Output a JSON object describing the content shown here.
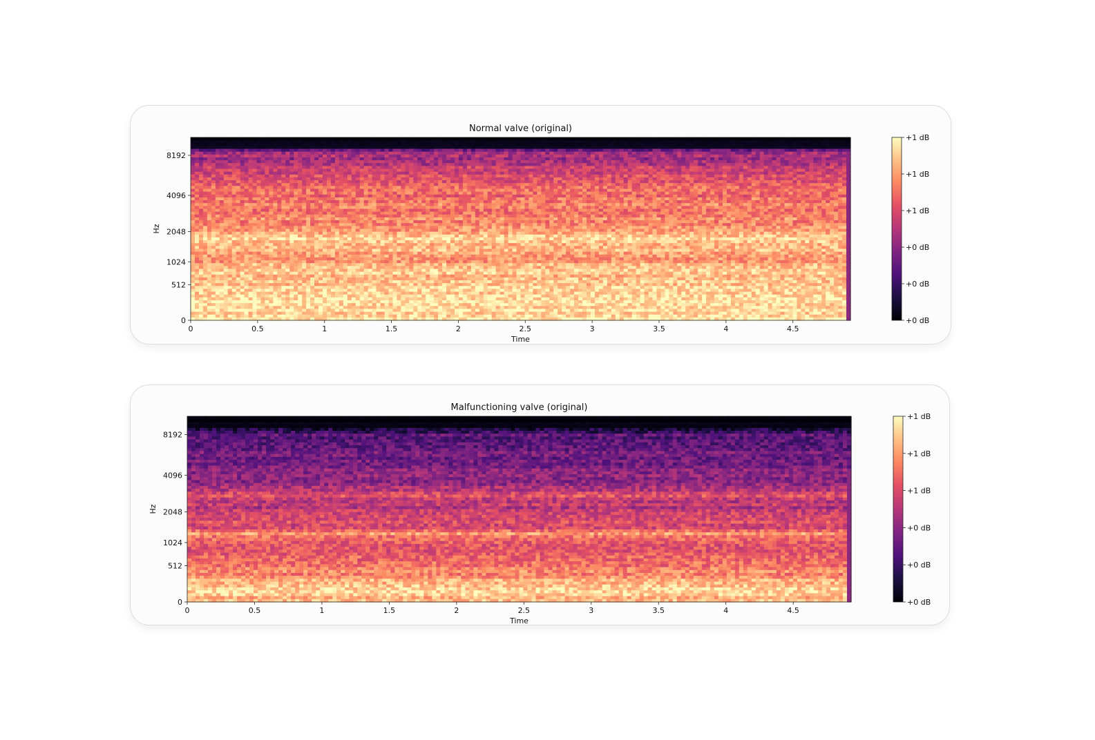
{
  "chart_data": [
    {
      "type": "heatmap",
      "title": "Normal valve (original)",
      "xlabel": "Time",
      "ylabel": "Hz",
      "xlim": [
        0,
        4.93
      ],
      "x_ticks": [
        0,
        0.5,
        1,
        1.5,
        2,
        2.5,
        3,
        3.5,
        4,
        4.5
      ],
      "x_tick_labels": [
        "0",
        "0.5",
        "1",
        "1.5",
        "2",
        "2.5",
        "3",
        "3.5",
        "4",
        "4.5"
      ],
      "y_ticks": [
        0,
        512,
        1024,
        2048,
        4096,
        8192
      ],
      "y_tick_labels": [
        "0",
        "512",
        "1024",
        "2048",
        "4096",
        "8192"
      ],
      "y_scale": "mel",
      "ylim": [
        0,
        11025
      ],
      "colormap": "magma",
      "colorbar_labels": [
        "+1 dB",
        "+1 dB",
        "+1 dB",
        "+0 dB",
        "+0 dB",
        "+0 dB"
      ],
      "band_profile": [
        {
          "hz": 0,
          "level": 0.93
        },
        {
          "hz": 300,
          "level": 0.92
        },
        {
          "hz": 600,
          "level": 0.88
        },
        {
          "hz": 900,
          "level": 0.86
        },
        {
          "hz": 1100,
          "level": 0.76
        },
        {
          "hz": 1400,
          "level": 0.84
        },
        {
          "hz": 1700,
          "level": 0.9
        },
        {
          "hz": 2100,
          "level": 0.8
        },
        {
          "hz": 3000,
          "level": 0.74
        },
        {
          "hz": 4500,
          "level": 0.68
        },
        {
          "hz": 6000,
          "level": 0.6
        },
        {
          "hz": 7500,
          "level": 0.44
        },
        {
          "hz": 8600,
          "level": 0.48
        },
        {
          "hz": 9500,
          "level": 0.02
        },
        {
          "hz": 11025,
          "level": 0.0
        }
      ]
    },
    {
      "type": "heatmap",
      "title": "Malfunctioning valve (original)",
      "xlabel": "Time",
      "ylabel": "Hz",
      "xlim": [
        0,
        4.93
      ],
      "x_ticks": [
        0,
        0.5,
        1,
        1.5,
        2,
        2.5,
        3,
        3.5,
        4,
        4.5
      ],
      "x_tick_labels": [
        "0",
        "0.5",
        "1",
        "1.5",
        "2",
        "2.5",
        "3",
        "3.5",
        "4",
        "4.5"
      ],
      "y_ticks": [
        0,
        512,
        1024,
        2048,
        4096,
        8192
      ],
      "y_tick_labels": [
        "0",
        "512",
        "1024",
        "2048",
        "4096",
        "8192"
      ],
      "y_scale": "mel",
      "ylim": [
        0,
        11025
      ],
      "colormap": "magma",
      "colorbar_labels": [
        "+1 dB",
        "+1 dB",
        "+1 dB",
        "+0 dB",
        "+0 dB",
        "+0 dB"
      ],
      "band_profile": [
        {
          "hz": 0,
          "level": 0.86
        },
        {
          "hz": 200,
          "level": 0.9
        },
        {
          "hz": 350,
          "level": 0.78
        },
        {
          "hz": 500,
          "level": 0.7
        },
        {
          "hz": 750,
          "level": 0.66
        },
        {
          "hz": 1000,
          "level": 0.6
        },
        {
          "hz": 1250,
          "level": 0.78
        },
        {
          "hz": 1500,
          "level": 0.55
        },
        {
          "hz": 1800,
          "level": 0.62
        },
        {
          "hz": 2200,
          "level": 0.5
        },
        {
          "hz": 2800,
          "level": 0.6
        },
        {
          "hz": 3500,
          "level": 0.42
        },
        {
          "hz": 4500,
          "level": 0.38
        },
        {
          "hz": 5500,
          "level": 0.34
        },
        {
          "hz": 7000,
          "level": 0.3
        },
        {
          "hz": 8300,
          "level": 0.28
        },
        {
          "hz": 9200,
          "level": 0.02
        },
        {
          "hz": 11025,
          "level": 0.0
        }
      ]
    }
  ]
}
